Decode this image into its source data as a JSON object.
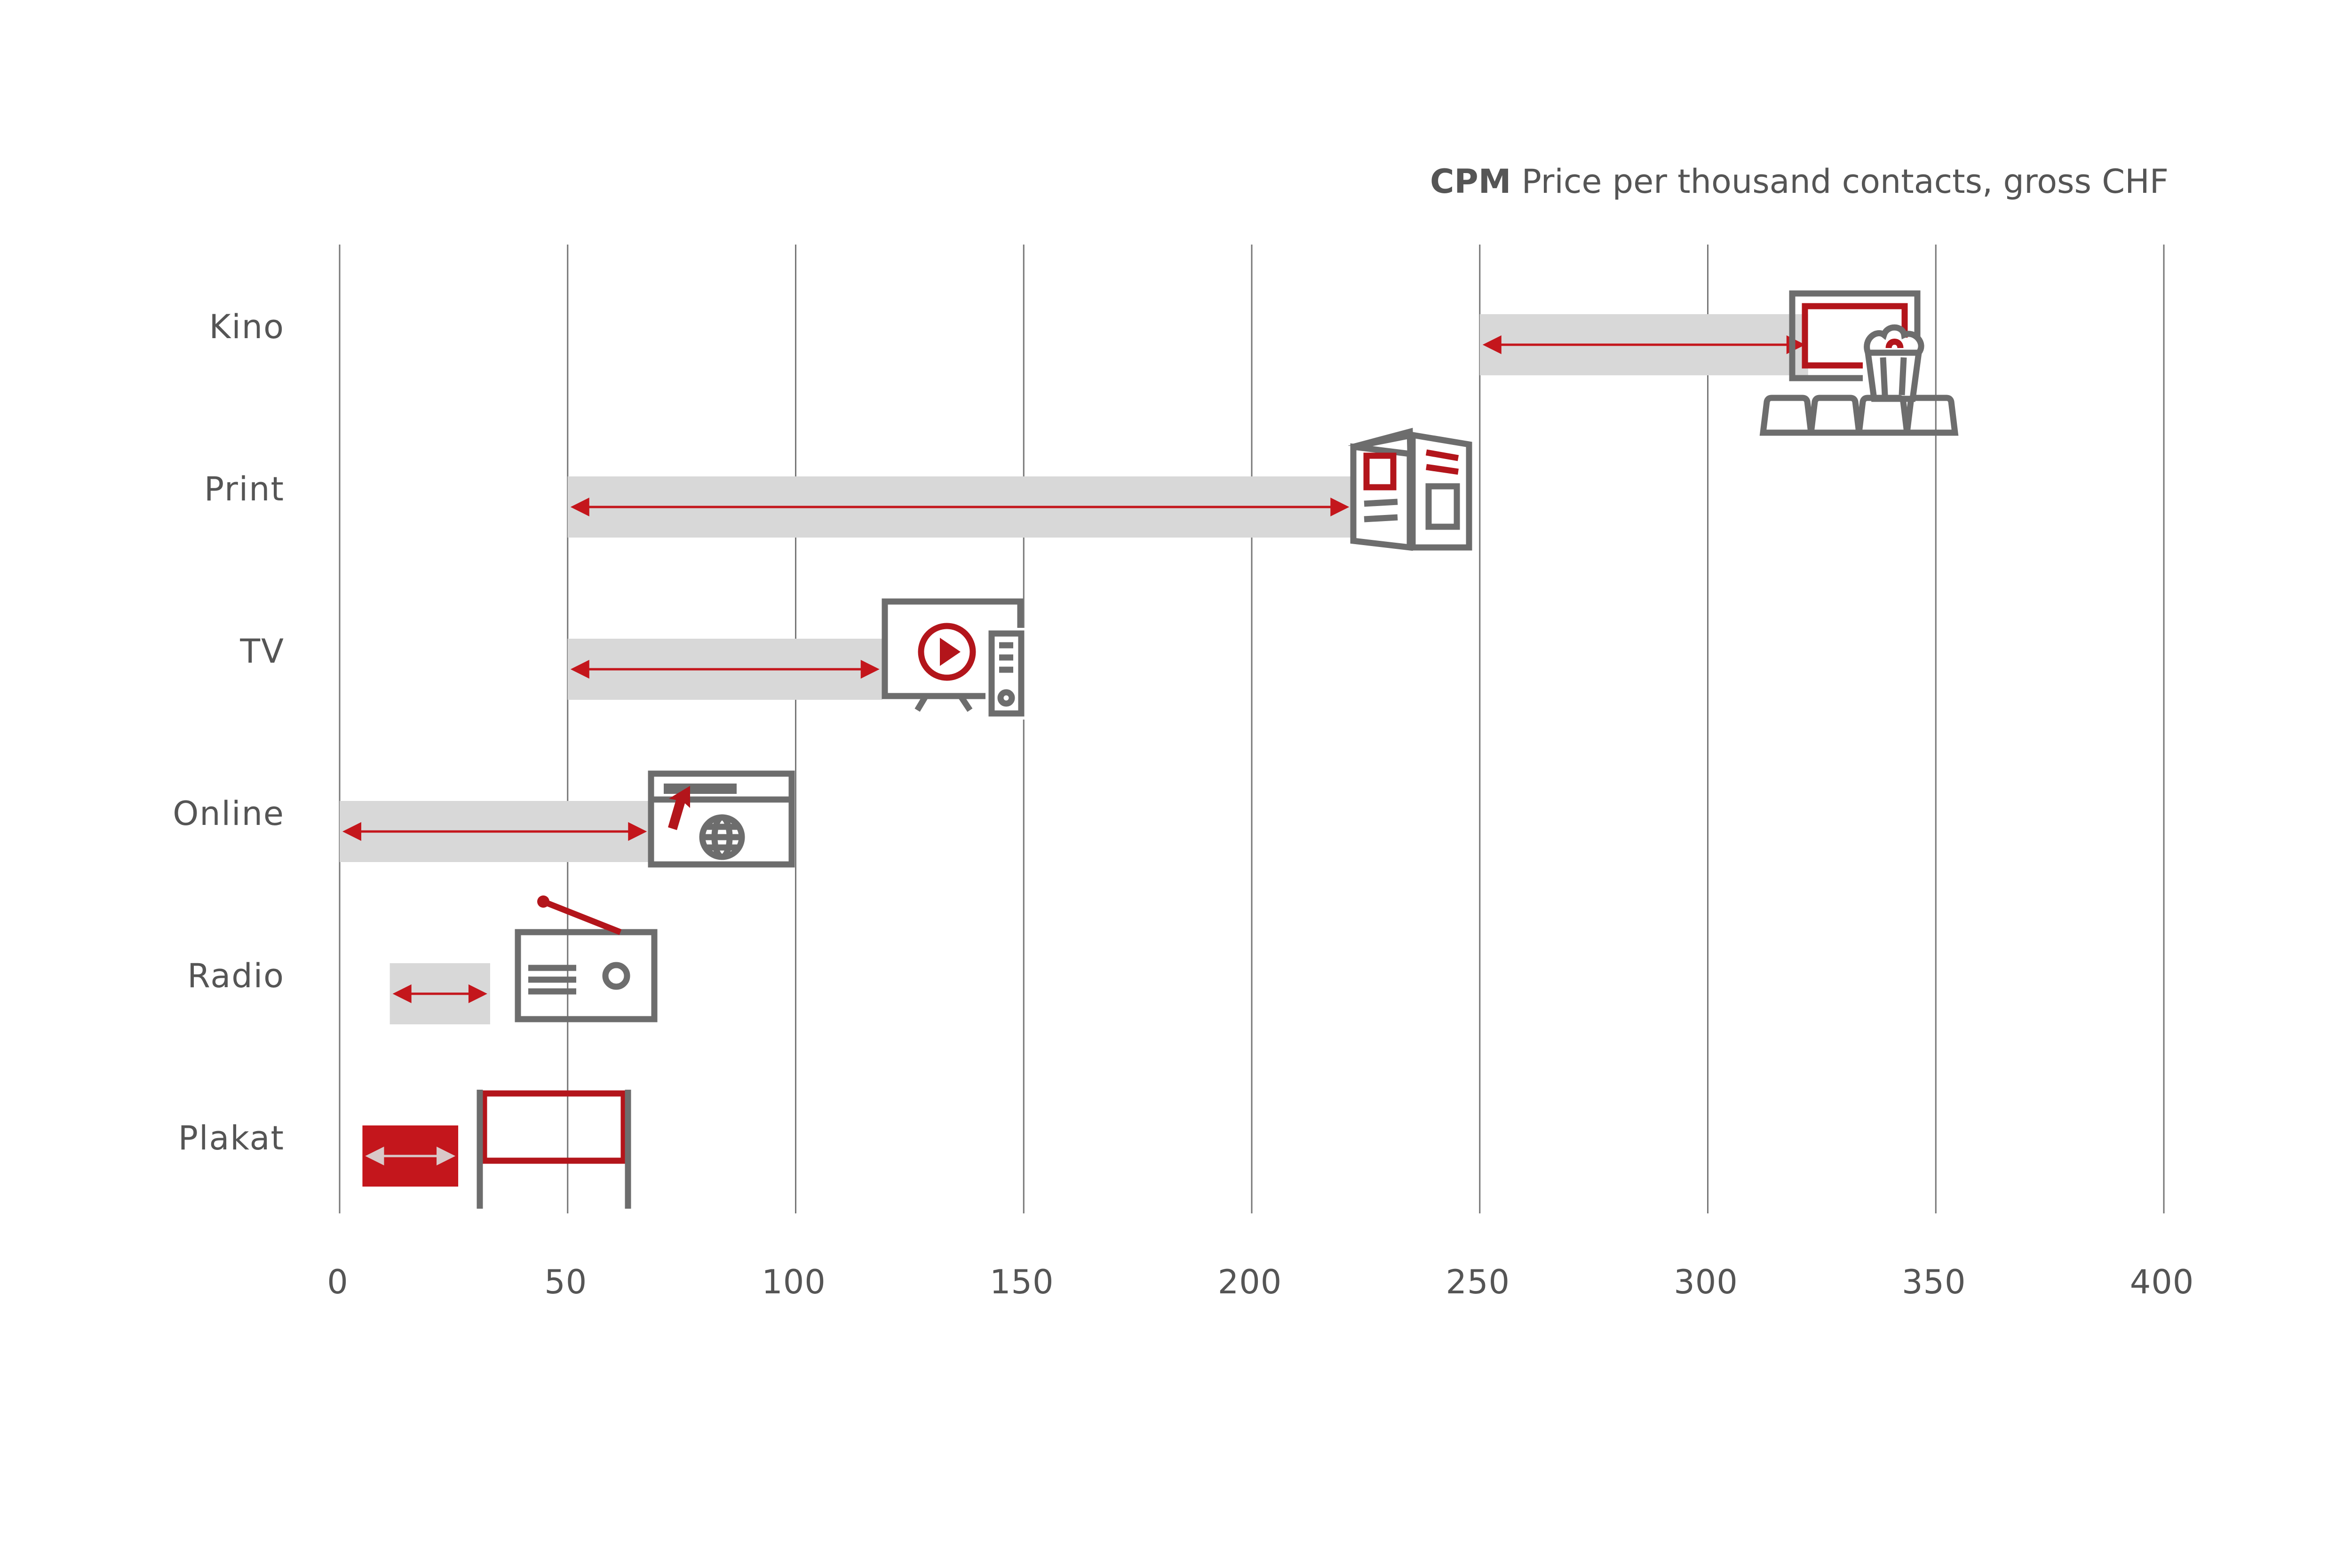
{
  "chart_data": {
    "type": "range-bar",
    "title_bold": "CPM",
    "title": "Price per thousand contacts, gross CHF",
    "xlim": [
      0,
      400
    ],
    "x_ticks": [
      0,
      50,
      100,
      150,
      200,
      250,
      300,
      350,
      400
    ],
    "grid": "vertical",
    "categories": [
      "Kino",
      "Print",
      "TV",
      "Online",
      "Radio",
      "Plakat"
    ],
    "ranges": [
      {
        "category": "Kino",
        "min": 250,
        "max": 322,
        "icon": "cinema-screen-popcorn-icon"
      },
      {
        "category": "Print",
        "min": 50,
        "max": 222,
        "icon": "newspaper-icon"
      },
      {
        "category": "TV",
        "min": 50,
        "max": 119,
        "icon": "tv-remote-icon"
      },
      {
        "category": "Online",
        "min": 0,
        "max": 68,
        "icon": "browser-globe-icon"
      },
      {
        "category": "Radio",
        "min": 11,
        "max": 33,
        "icon": "radio-icon"
      },
      {
        "category": "Plakat",
        "min": 5,
        "max": 26,
        "icon": "billboard-icon",
        "highlight": true
      }
    ],
    "colors": {
      "accent": "#c4161c",
      "bar": "#d8d8d8",
      "icon": "#6d6d6d",
      "grid": "#777777"
    }
  }
}
